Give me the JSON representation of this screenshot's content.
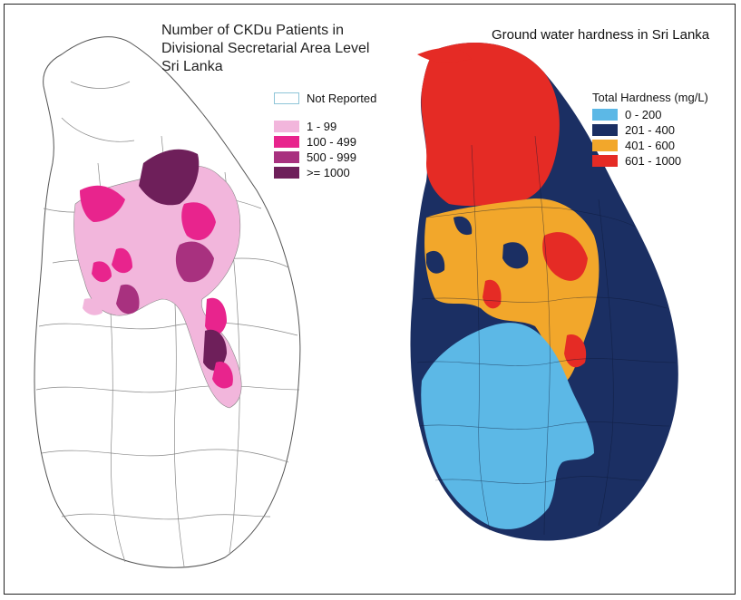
{
  "left_map": {
    "title_lines": [
      "Number of CKDu Patients in",
      "Divisional Secretarial Area Level",
      "Sri Lanka"
    ],
    "legend": {
      "not_reported": {
        "label": "Not Reported",
        "color": "#ffffff"
      },
      "items": [
        {
          "label": "1 - 99",
          "color": "#f2b6dc"
        },
        {
          "label": "100 - 499",
          "color": "#e8248d"
        },
        {
          "label": "500 - 999",
          "color": "#a8317f"
        },
        {
          "label": ">= 1000",
          "color": "#6e1f5a"
        }
      ]
    }
  },
  "right_map": {
    "title": "Ground water hardness in Sri Lanka",
    "legend": {
      "heading": "Total Hardness (mg/L)",
      "items": [
        {
          "label": "0 - 200",
          "color": "#5cb8e6"
        },
        {
          "label": "201 - 400",
          "color": "#1b2f63"
        },
        {
          "label": "401 - 600",
          "color": "#f2a72b"
        },
        {
          "label": "601 - 1000",
          "color": "#e52b25"
        }
      ]
    }
  }
}
